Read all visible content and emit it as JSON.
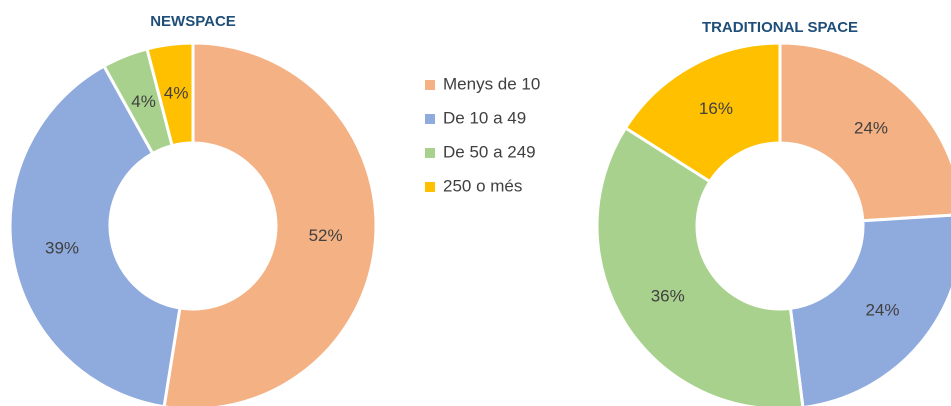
{
  "chart_data": [
    {
      "type": "donut",
      "title": "NEWSPACE",
      "categories": [
        "Menys de 10",
        "De 10 a 49",
        "De 50 a 249",
        "250 o més"
      ],
      "values": [
        52,
        39,
        4,
        4
      ],
      "value_labels": [
        "52%",
        "39%",
        "4%",
        "4%"
      ],
      "colors": [
        "#f4b183",
        "#8faadc",
        "#a9d18e",
        "#ffc000"
      ]
    },
    {
      "type": "donut",
      "title": "TRADITIONAL SPACE",
      "values": [
        24,
        24,
        36,
        16
      ],
      "value_labels": [
        "24%",
        "24%",
        "36%",
        "16%"
      ],
      "colors": [
        "#f4b183",
        "#8faadc",
        "#a9d18e",
        "#ffc000"
      ]
    }
  ]
}
